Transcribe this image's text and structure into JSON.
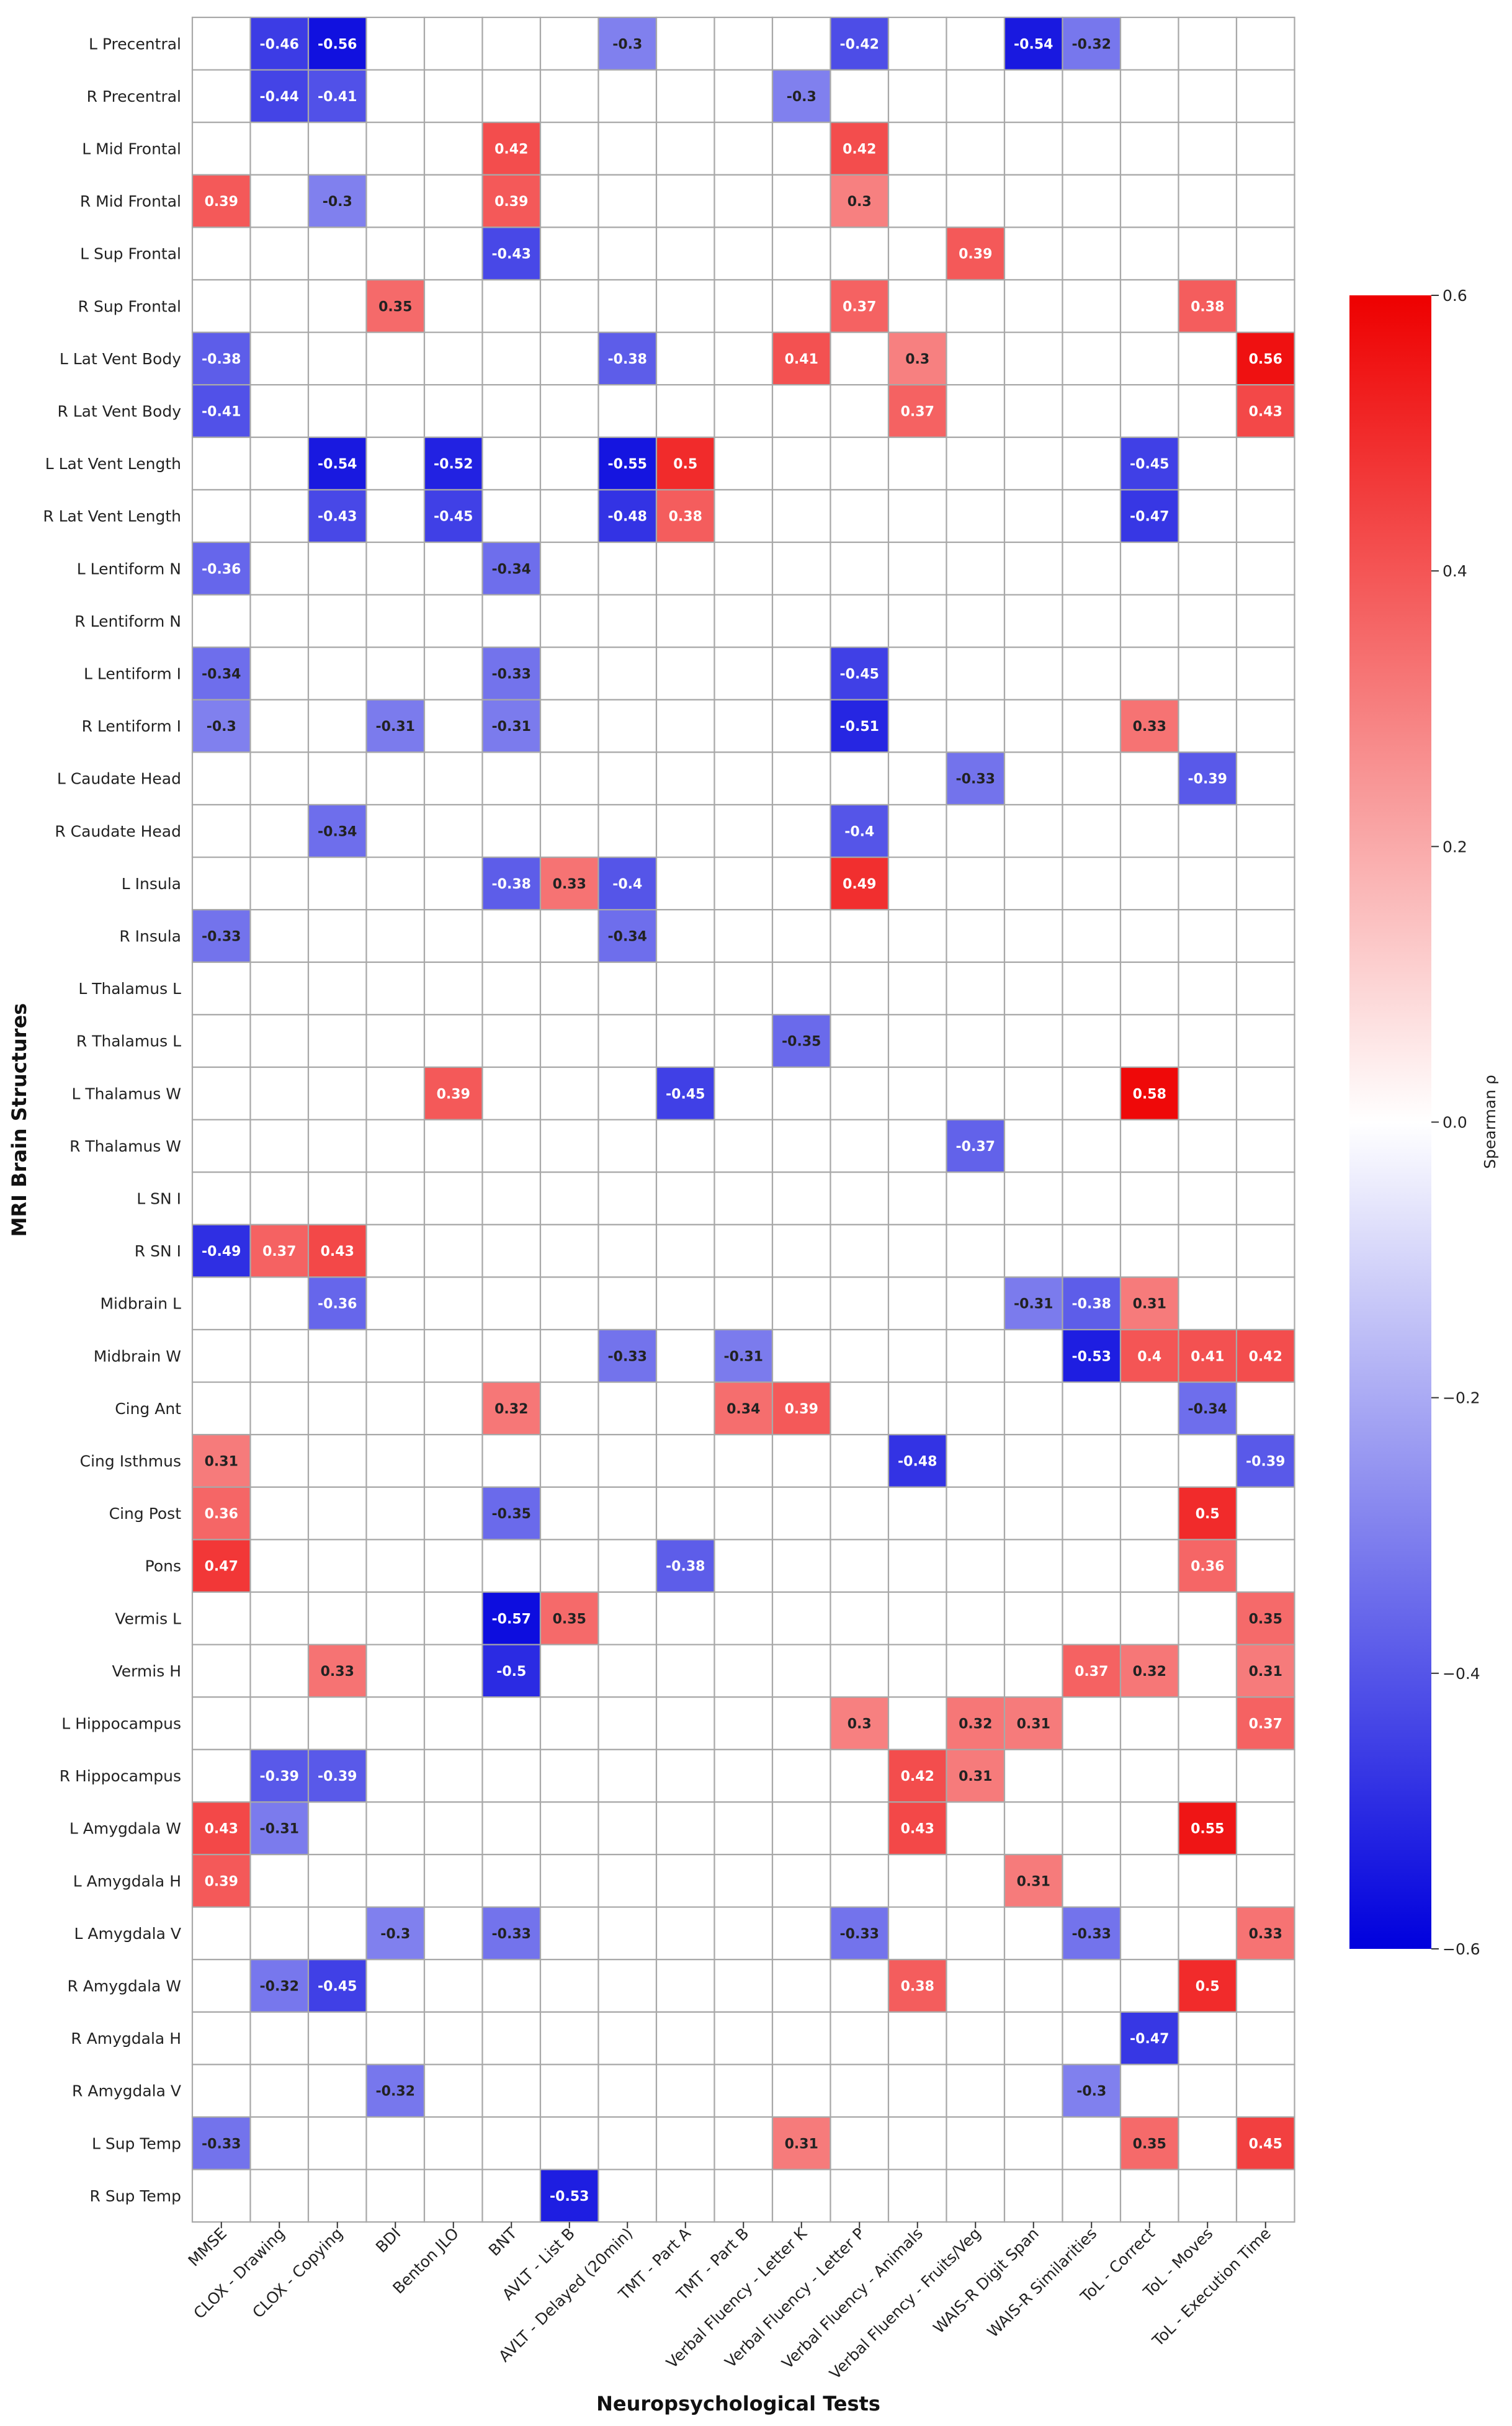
{
  "chart_data": {
    "type": "heatmap",
    "title": "",
    "xlabel": "Neuropsychological Tests",
    "ylabel": "MRI Brain Structures",
    "colorbar": {
      "label": "Spearman ρ",
      "range": [
        -0.6,
        0.6
      ],
      "ticks": [
        "0.6",
        "0.4",
        "0.2",
        "0.0",
        "−0.2",
        "−0.4",
        "−0.6"
      ],
      "tick_values": [
        0.6,
        0.4,
        0.2,
        0.0,
        -0.2,
        -0.4,
        -0.6
      ]
    },
    "colors": {
      "negative": "#0000dd",
      "neutral": "#ffffff",
      "positive": "#ee0000",
      "grid": "#a8a8a8"
    },
    "columns": [
      "MMSE",
      "CLOX - Drawing",
      "CLOX - Copying",
      "BDI",
      "Benton JLO",
      "BNT",
      "AVLT - List B",
      "AVLT - Delayed (20min)",
      "TMT - Part A",
      "TMT - Part B",
      "Verbal Fluency - Letter K",
      "Verbal Fluency - Letter P",
      "Verbal Fluency - Animals",
      "Verbal Fluency - Fruits/Veg",
      "WAIS-R Digit Span",
      "WAIS-R Similarities",
      "ToL - Correct",
      "ToL - Moves",
      "ToL - Execution Time"
    ],
    "rows": [
      "L Precentral",
      "R Precentral",
      "L Mid Frontal",
      "R Mid Frontal",
      "L Sup Frontal",
      "R Sup Frontal",
      "L Lat Vent Body",
      "R Lat Vent Body",
      "L Lat Vent Length",
      "R Lat Vent Length",
      "L Lentiform N",
      "R Lentiform N",
      "L Lentiform I",
      "R Lentiform I",
      "L Caudate Head",
      "R Caudate Head",
      "L Insula",
      "R Insula",
      "L Thalamus L",
      "R Thalamus L",
      "L Thalamus W",
      "R Thalamus W",
      "L SN I",
      "R SN I",
      "Midbrain L",
      "Midbrain W",
      "Cing Ant",
      "Cing Isthmus",
      "Cing Post",
      "Pons",
      "Vermis L",
      "Vermis H",
      "L Hippocampus",
      "R Hippocampus",
      "L Amygdala W",
      "L Amygdala H",
      "L Amygdala V",
      "R Amygdala W",
      "R Amygdala H",
      "R Amygdala V",
      "L Sup Temp",
      "R Sup Temp"
    ],
    "annotated_cells": [
      {
        "row": "L Precentral",
        "col": "CLOX - Drawing",
        "value": -0.46
      },
      {
        "row": "L Precentral",
        "col": "CLOX - Copying",
        "value": -0.56
      },
      {
        "row": "L Precentral",
        "col": "AVLT - Delayed (20min)",
        "value": -0.3
      },
      {
        "row": "L Precentral",
        "col": "Verbal Fluency - Letter P",
        "value": -0.42
      },
      {
        "row": "L Precentral",
        "col": "WAIS-R Digit Span",
        "value": -0.54
      },
      {
        "row": "L Precentral",
        "col": "WAIS-R Similarities",
        "value": -0.32
      },
      {
        "row": "R Precentral",
        "col": "CLOX - Drawing",
        "value": -0.44
      },
      {
        "row": "R Precentral",
        "col": "CLOX - Copying",
        "value": -0.41
      },
      {
        "row": "R Precentral",
        "col": "Verbal Fluency - Letter K",
        "value": -0.3
      },
      {
        "row": "L Mid Frontal",
        "col": "BNT",
        "value": 0.42
      },
      {
        "row": "L Mid Frontal",
        "col": "Verbal Fluency - Letter P",
        "value": 0.42
      },
      {
        "row": "R Mid Frontal",
        "col": "MMSE",
        "value": 0.39
      },
      {
        "row": "R Mid Frontal",
        "col": "CLOX - Copying",
        "value": -0.3
      },
      {
        "row": "R Mid Frontal",
        "col": "BNT",
        "value": 0.39
      },
      {
        "row": "R Mid Frontal",
        "col": "Verbal Fluency - Letter P",
        "value": 0.3
      },
      {
        "row": "L Sup Frontal",
        "col": "BNT",
        "value": -0.43
      },
      {
        "row": "L Sup Frontal",
        "col": "Verbal Fluency - Fruits/Veg",
        "value": 0.39
      },
      {
        "row": "R Sup Frontal",
        "col": "BDI",
        "value": 0.35
      },
      {
        "row": "R Sup Frontal",
        "col": "Verbal Fluency - Letter P",
        "value": 0.37
      },
      {
        "row": "R Sup Frontal",
        "col": "ToL - Moves",
        "value": 0.38
      },
      {
        "row": "L Lat Vent Body",
        "col": "MMSE",
        "value": -0.38
      },
      {
        "row": "L Lat Vent Body",
        "col": "AVLT - Delayed (20min)",
        "value": -0.38
      },
      {
        "row": "L Lat Vent Body",
        "col": "Verbal Fluency - Letter K",
        "value": 0.41
      },
      {
        "row": "L Lat Vent Body",
        "col": "Verbal Fluency - Animals",
        "value": 0.3
      },
      {
        "row": "L Lat Vent Body",
        "col": "ToL - Execution Time",
        "value": 0.56
      },
      {
        "row": "R Lat Vent Body",
        "col": "MMSE",
        "value": -0.41
      },
      {
        "row": "R Lat Vent Body",
        "col": "Verbal Fluency - Animals",
        "value": 0.37
      },
      {
        "row": "R Lat Vent Body",
        "col": "ToL - Execution Time",
        "value": 0.43
      },
      {
        "row": "L Lat Vent Length",
        "col": "CLOX - Copying",
        "value": -0.54
      },
      {
        "row": "L Lat Vent Length",
        "col": "Benton JLO",
        "value": -0.52
      },
      {
        "row": "L Lat Vent Length",
        "col": "AVLT - Delayed (20min)",
        "value": -0.55
      },
      {
        "row": "L Lat Vent Length",
        "col": "TMT - Part A",
        "value": 0.5
      },
      {
        "row": "L Lat Vent Length",
        "col": "ToL - Correct",
        "value": -0.45
      },
      {
        "row": "R Lat Vent Length",
        "col": "CLOX - Copying",
        "value": -0.43
      },
      {
        "row": "R Lat Vent Length",
        "col": "Benton JLO",
        "value": -0.45
      },
      {
        "row": "R Lat Vent Length",
        "col": "AVLT - Delayed (20min)",
        "value": -0.48
      },
      {
        "row": "R Lat Vent Length",
        "col": "TMT - Part A",
        "value": 0.38
      },
      {
        "row": "R Lat Vent Length",
        "col": "ToL - Correct",
        "value": -0.47
      },
      {
        "row": "L Lentiform N",
        "col": "MMSE",
        "value": -0.36
      },
      {
        "row": "L Lentiform N",
        "col": "BNT",
        "value": -0.34
      },
      {
        "row": "L Lentiform I",
        "col": "MMSE",
        "value": -0.34
      },
      {
        "row": "L Lentiform I",
        "col": "BNT",
        "value": -0.33
      },
      {
        "row": "L Lentiform I",
        "col": "Verbal Fluency - Letter P",
        "value": -0.45
      },
      {
        "row": "R Lentiform I",
        "col": "MMSE",
        "value": -0.3
      },
      {
        "row": "R Lentiform I",
        "col": "BDI",
        "value": -0.31
      },
      {
        "row": "R Lentiform I",
        "col": "BNT",
        "value": -0.31
      },
      {
        "row": "R Lentiform I",
        "col": "Verbal Fluency - Letter P",
        "value": -0.51
      },
      {
        "row": "R Lentiform I",
        "col": "ToL - Correct",
        "value": 0.33
      },
      {
        "row": "L Caudate Head",
        "col": "Verbal Fluency - Fruits/Veg",
        "value": -0.33
      },
      {
        "row": "L Caudate Head",
        "col": "ToL - Moves",
        "value": -0.39
      },
      {
        "row": "R Caudate Head",
        "col": "CLOX - Copying",
        "value": -0.34
      },
      {
        "row": "R Caudate Head",
        "col": "Verbal Fluency - Letter P",
        "value": -0.4
      },
      {
        "row": "L Insula",
        "col": "BNT",
        "value": -0.38
      },
      {
        "row": "L Insula",
        "col": "AVLT - List B",
        "value": 0.33
      },
      {
        "row": "L Insula",
        "col": "AVLT - Delayed (20min)",
        "value": -0.4
      },
      {
        "row": "L Insula",
        "col": "Verbal Fluency - Letter P",
        "value": 0.49
      },
      {
        "row": "R Insula",
        "col": "MMSE",
        "value": -0.33
      },
      {
        "row": "R Insula",
        "col": "AVLT - Delayed (20min)",
        "value": -0.34
      },
      {
        "row": "R Thalamus L",
        "col": "Verbal Fluency - Letter K",
        "value": -0.35
      },
      {
        "row": "L Thalamus W",
        "col": "Benton JLO",
        "value": 0.39
      },
      {
        "row": "L Thalamus W",
        "col": "TMT - Part A",
        "value": -0.45
      },
      {
        "row": "L Thalamus W",
        "col": "ToL - Correct",
        "value": 0.58
      },
      {
        "row": "R Thalamus W",
        "col": "Verbal Fluency - Fruits/Veg",
        "value": -0.37
      },
      {
        "row": "R SN I",
        "col": "MMSE",
        "value": -0.49
      },
      {
        "row": "R SN I",
        "col": "CLOX - Drawing",
        "value": 0.37
      },
      {
        "row": "R SN I",
        "col": "CLOX - Copying",
        "value": 0.43
      },
      {
        "row": "Midbrain L",
        "col": "CLOX - Copying",
        "value": -0.36
      },
      {
        "row": "Midbrain L",
        "col": "WAIS-R Digit Span",
        "value": -0.31
      },
      {
        "row": "Midbrain L",
        "col": "WAIS-R Similarities",
        "value": -0.38
      },
      {
        "row": "Midbrain L",
        "col": "ToL - Correct",
        "value": 0.31
      },
      {
        "row": "Midbrain W",
        "col": "AVLT - Delayed (20min)",
        "value": -0.33
      },
      {
        "row": "Midbrain W",
        "col": "TMT - Part B",
        "value": -0.31
      },
      {
        "row": "Midbrain W",
        "col": "WAIS-R Similarities",
        "value": -0.53
      },
      {
        "row": "Midbrain W",
        "col": "ToL - Correct",
        "value": 0.4
      },
      {
        "row": "Midbrain W",
        "col": "ToL - Moves",
        "value": 0.41
      },
      {
        "row": "Midbrain W",
        "col": "ToL - Execution Time",
        "value": 0.42
      },
      {
        "row": "Cing Ant",
        "col": "BNT",
        "value": 0.32
      },
      {
        "row": "Cing Ant",
        "col": "TMT - Part B",
        "value": 0.34
      },
      {
        "row": "Cing Ant",
        "col": "Verbal Fluency - Letter K",
        "value": 0.39
      },
      {
        "row": "Cing Ant",
        "col": "ToL - Moves",
        "value": -0.34
      },
      {
        "row": "Cing Isthmus",
        "col": "MMSE",
        "value": 0.31
      },
      {
        "row": "Cing Isthmus",
        "col": "Verbal Fluency - Animals",
        "value": -0.48
      },
      {
        "row": "Cing Isthmus",
        "col": "ToL - Execution Time",
        "value": -0.39
      },
      {
        "row": "Cing Post",
        "col": "MMSE",
        "value": 0.36
      },
      {
        "row": "Cing Post",
        "col": "BNT",
        "value": -0.35
      },
      {
        "row": "Cing Post",
        "col": "ToL - Moves",
        "value": 0.5
      },
      {
        "row": "Pons",
        "col": "MMSE",
        "value": 0.47
      },
      {
        "row": "Pons",
        "col": "TMT - Part A",
        "value": -0.38
      },
      {
        "row": "Pons",
        "col": "ToL - Moves",
        "value": 0.36
      },
      {
        "row": "Vermis L",
        "col": "BNT",
        "value": -0.57
      },
      {
        "row": "Vermis L",
        "col": "AVLT - List B",
        "value": 0.35
      },
      {
        "row": "Vermis L",
        "col": "ToL - Execution Time",
        "value": 0.35
      },
      {
        "row": "Vermis H",
        "col": "CLOX - Copying",
        "value": 0.33
      },
      {
        "row": "Vermis H",
        "col": "BNT",
        "value": -0.5
      },
      {
        "row": "Vermis H",
        "col": "WAIS-R Similarities",
        "value": 0.37
      },
      {
        "row": "Vermis H",
        "col": "ToL - Correct",
        "value": 0.32
      },
      {
        "row": "Vermis H",
        "col": "ToL - Execution Time",
        "value": 0.31
      },
      {
        "row": "L Hippocampus",
        "col": "Verbal Fluency - Letter P",
        "value": 0.3
      },
      {
        "row": "L Hippocampus",
        "col": "Verbal Fluency - Fruits/Veg",
        "value": 0.32
      },
      {
        "row": "L Hippocampus",
        "col": "WAIS-R Digit Span",
        "value": 0.31
      },
      {
        "row": "L Hippocampus",
        "col": "ToL - Execution Time",
        "value": 0.37
      },
      {
        "row": "R Hippocampus",
        "col": "CLOX - Drawing",
        "value": -0.39
      },
      {
        "row": "R Hippocampus",
        "col": "CLOX - Copying",
        "value": -0.39
      },
      {
        "row": "R Hippocampus",
        "col": "Verbal Fluency - Animals",
        "value": 0.42
      },
      {
        "row": "R Hippocampus",
        "col": "Verbal Fluency - Fruits/Veg",
        "value": 0.31
      },
      {
        "row": "L Amygdala W",
        "col": "MMSE",
        "value": 0.43
      },
      {
        "row": "L Amygdala W",
        "col": "CLOX - Drawing",
        "value": -0.31
      },
      {
        "row": "L Amygdala W",
        "col": "Verbal Fluency - Animals",
        "value": 0.43
      },
      {
        "row": "L Amygdala W",
        "col": "ToL - Moves",
        "value": 0.55
      },
      {
        "row": "L Amygdala H",
        "col": "MMSE",
        "value": 0.39
      },
      {
        "row": "L Amygdala H",
        "col": "WAIS-R Digit Span",
        "value": 0.31
      },
      {
        "row": "L Amygdala V",
        "col": "BDI",
        "value": -0.3
      },
      {
        "row": "L Amygdala V",
        "col": "BNT",
        "value": -0.33
      },
      {
        "row": "L Amygdala V",
        "col": "Verbal Fluency - Letter P",
        "value": -0.33
      },
      {
        "row": "L Amygdala V",
        "col": "WAIS-R Similarities",
        "value": -0.33
      },
      {
        "row": "L Amygdala V",
        "col": "ToL - Execution Time",
        "value": 0.33
      },
      {
        "row": "R Amygdala W",
        "col": "CLOX - Drawing",
        "value": -0.32
      },
      {
        "row": "R Amygdala W",
        "col": "CLOX - Copying",
        "value": -0.45
      },
      {
        "row": "R Amygdala W",
        "col": "Verbal Fluency - Animals",
        "value": 0.38
      },
      {
        "row": "R Amygdala W",
        "col": "ToL - Moves",
        "value": 0.5
      },
      {
        "row": "R Amygdala H",
        "col": "ToL - Correct",
        "value": -0.47
      },
      {
        "row": "R Amygdala V",
        "col": "BDI",
        "value": -0.32
      },
      {
        "row": "R Amygdala V",
        "col": "WAIS-R Similarities",
        "value": -0.3
      },
      {
        "row": "L Sup Temp",
        "col": "MMSE",
        "value": -0.33
      },
      {
        "row": "L Sup Temp",
        "col": "Verbal Fluency - Letter K",
        "value": 0.31
      },
      {
        "row": "L Sup Temp",
        "col": "ToL - Correct",
        "value": 0.35
      },
      {
        "row": "L Sup Temp",
        "col": "ToL - Execution Time",
        "value": 0.45
      },
      {
        "row": "R Sup Temp",
        "col": "AVLT - List B",
        "value": -0.53
      }
    ]
  }
}
